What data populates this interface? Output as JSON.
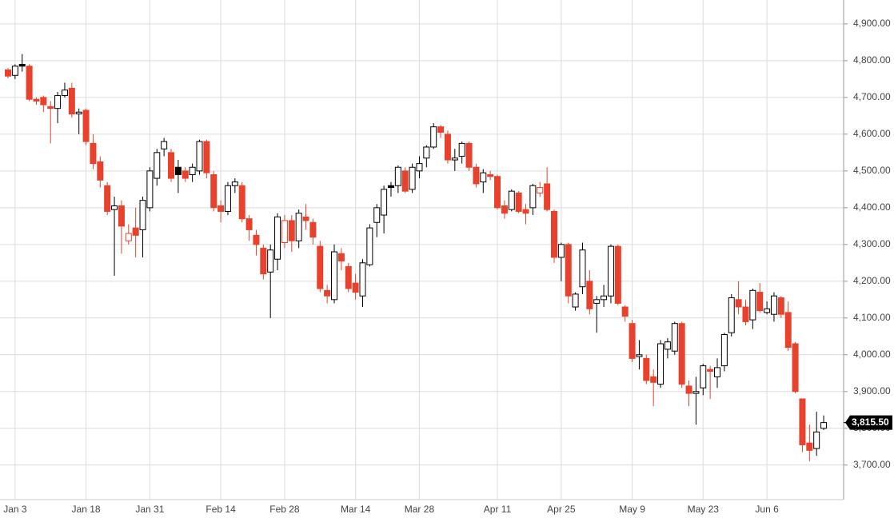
{
  "chart_data": {
    "type": "candlestick",
    "categories": [
      null,
      "Jan 3",
      null,
      null,
      null,
      null,
      null,
      null,
      null,
      null,
      null,
      "Jan 18",
      null,
      null,
      null,
      null,
      null,
      null,
      null,
      null,
      "Jan 31",
      null,
      null,
      null,
      null,
      null,
      null,
      null,
      null,
      null,
      "Feb 14",
      null,
      null,
      null,
      null,
      null,
      null,
      null,
      null,
      "Feb 28",
      null,
      null,
      null,
      null,
      null,
      null,
      null,
      null,
      null,
      "Mar 14",
      null,
      null,
      null,
      null,
      null,
      null,
      null,
      null,
      "Mar 28",
      null,
      null,
      null,
      null,
      null,
      null,
      null,
      null,
      null,
      null,
      "Apr 11",
      null,
      null,
      null,
      null,
      null,
      null,
      null,
      null,
      "Apr 25",
      null,
      null,
      null,
      null,
      null,
      null,
      null,
      null,
      null,
      "May 9",
      null,
      null,
      null,
      null,
      null,
      null,
      null,
      null,
      null,
      "May 23",
      null,
      null,
      null,
      null,
      null,
      null,
      null,
      null,
      "Jun 6",
      null,
      null,
      null,
      null,
      null,
      null,
      null,
      null
    ],
    "open": [
      4775,
      4760,
      4790,
      4785,
      4695,
      4700,
      4675,
      4670,
      4705,
      4725,
      4655,
      4665,
      4575,
      4525,
      4460,
      4395,
      4405,
      4310,
      4345,
      4340,
      4400,
      4480,
      4560,
      4550,
      4510,
      4500,
      4490,
      4500,
      4580,
      4490,
      4405,
      4390,
      4460,
      4460,
      4370,
      4325,
      4290,
      4225,
      4260,
      4305,
      4365,
      4310,
      4375,
      4360,
      4295,
      4175,
      4150,
      4275,
      4240,
      4195,
      4160,
      4245,
      4360,
      4380,
      4460,
      4460,
      4500,
      4450,
      4500,
      4535,
      4565,
      4620,
      4600,
      4530,
      4540,
      4575,
      4510,
      4470,
      4490,
      4485,
      4405,
      4395,
      4440,
      4395,
      4400,
      4440,
      4465,
      4390,
      4265,
      4300,
      4130,
      4185,
      4200,
      4140,
      4150,
      4160,
      4295,
      4130,
      4085,
      3995,
      3990,
      3940,
      3920,
      4015,
      4010,
      4085,
      3915,
      3895,
      3910,
      3960,
      3940,
      3970,
      4060,
      4150,
      4130,
      4095,
      4170,
      4115,
      4110,
      4155,
      4115,
      4030,
      3880,
      3760,
      3745,
      3800
    ],
    "high": [
      4780,
      4790,
      4818,
      4790,
      4700,
      4705,
      4690,
      4715,
      4740,
      4740,
      4670,
      4670,
      4600,
      4540,
      4470,
      4430,
      4420,
      4355,
      4400,
      4430,
      4510,
      4560,
      4590,
      4560,
      4530,
      4510,
      4520,
      4585,
      4585,
      4500,
      4420,
      4470,
      4480,
      4470,
      4380,
      4340,
      4300,
      4300,
      4385,
      4380,
      4380,
      4395,
      4410,
      4370,
      4310,
      4190,
      4300,
      4290,
      4250,
      4220,
      4260,
      4355,
      4410,
      4460,
      4470,
      4515,
      4510,
      4520,
      4540,
      4570,
      4630,
      4625,
      4610,
      4560,
      4580,
      4580,
      4520,
      4505,
      4500,
      4490,
      4420,
      4450,
      4445,
      4410,
      4465,
      4470,
      4510,
      4395,
      4305,
      4305,
      4170,
      4305,
      4230,
      4160,
      4190,
      4300,
      4300,
      4135,
      4095,
      4040,
      4000,
      3960,
      4040,
      4045,
      4090,
      4090,
      3930,
      3940,
      3975,
      3970,
      3990,
      4060,
      4165,
      4200,
      4150,
      4180,
      4195,
      4145,
      4170,
      4160,
      4145,
      4035,
      3880,
      3810,
      3845,
      3835
    ],
    "low": [
      4752,
      4750,
      4770,
      4690,
      4680,
      4660,
      4575,
      4630,
      4700,
      4645,
      4600,
      4570,
      4505,
      4455,
      4380,
      4215,
      4275,
      4300,
      4265,
      4265,
      4390,
      4460,
      4540,
      4470,
      4440,
      4470,
      4470,
      4490,
      4480,
      4390,
      4360,
      4380,
      4440,
      4360,
      4310,
      4270,
      4205,
      4100,
      4230,
      4290,
      4280,
      4290,
      4340,
      4300,
      4170,
      4140,
      4140,
      4230,
      4170,
      4150,
      4130,
      4240,
      4320,
      4330,
      4430,
      4440,
      4440,
      4440,
      4480,
      4510,
      4560,
      4590,
      4520,
      4500,
      4520,
      4500,
      4455,
      4440,
      4475,
      4395,
      4370,
      4390,
      4385,
      4355,
      4380,
      4430,
      4390,
      4250,
      4200,
      4140,
      4120,
      4165,
      4110,
      4060,
      4130,
      4140,
      4135,
      4090,
      3980,
      3960,
      3920,
      3860,
      3910,
      3990,
      4000,
      3910,
      3860,
      3810,
      3890,
      3880,
      3910,
      3955,
      4050,
      4110,
      4080,
      4070,
      4115,
      4110,
      4090,
      4100,
      4010,
      3895,
      3735,
      3710,
      3725,
      3795
    ],
    "close": [
      4758,
      4785,
      4785,
      4695,
      4690,
      4680,
      4670,
      4705,
      4720,
      4655,
      4660,
      4580,
      4520,
      4475,
      4390,
      4405,
      4350,
      4330,
      4325,
      4420,
      4500,
      4550,
      4580,
      4480,
      4490,
      4480,
      4510,
      4580,
      4495,
      4400,
      4390,
      4460,
      4470,
      4370,
      4340,
      4300,
      4220,
      4285,
      4375,
      4365,
      4310,
      4385,
      4365,
      4320,
      4180,
      4160,
      4280,
      4255,
      4180,
      4170,
      4250,
      4345,
      4400,
      4450,
      4455,
      4510,
      4445,
      4510,
      4520,
      4565,
      4620,
      4605,
      4530,
      4535,
      4575,
      4510,
      4465,
      4495,
      4485,
      4400,
      4385,
      4445,
      4390,
      4385,
      4460,
      4455,
      4395,
      4265,
      4300,
      4160,
      4165,
      4285,
      4125,
      4150,
      4160,
      4295,
      4140,
      4105,
      3990,
      4000,
      3930,
      3925,
      4030,
      4035,
      4085,
      3920,
      3895,
      3900,
      3970,
      3955,
      3965,
      4055,
      4155,
      4130,
      4090,
      4175,
      4120,
      4125,
      4160,
      4110,
      4020,
      3900,
      3755,
      3740,
      3790,
      3815.5
    ],
    "up_color": "#000000",
    "down_color": "#e8412c",
    "ylim": [
      3606,
      4965
    ],
    "yticks": [
      {
        "value": 4900,
        "label": "4,900.00"
      },
      {
        "value": 4800,
        "label": "4,800.00"
      },
      {
        "value": 4700,
        "label": "4,700.00"
      },
      {
        "value": 4600,
        "label": "4,600.00"
      },
      {
        "value": 4500,
        "label": "4,500.00"
      },
      {
        "value": 4400,
        "label": "4,400.00"
      },
      {
        "value": 4300,
        "label": "4,300.00"
      },
      {
        "value": 4200,
        "label": "4,200.00"
      },
      {
        "value": 4100,
        "label": "4,100.00"
      },
      {
        "value": 4000,
        "label": "4,000.00"
      },
      {
        "value": 3900,
        "label": "3,900.00"
      },
      {
        "value": 3800,
        "label": "3,800.00"
      },
      {
        "value": 3700,
        "label": "3,700.00"
      }
    ],
    "last_price": {
      "value": 3815.5,
      "label": "3,815.50"
    },
    "grid": true
  }
}
